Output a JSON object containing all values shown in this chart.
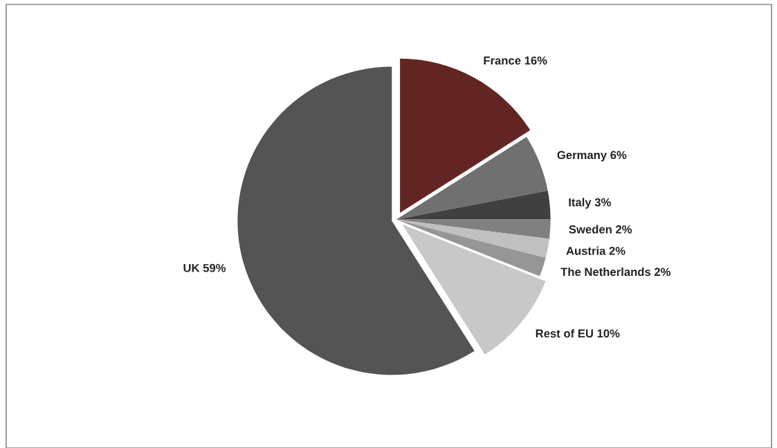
{
  "chart_data": {
    "type": "pie",
    "categories": [
      "France",
      "Germany",
      "Italy",
      "Sweden",
      "Austria",
      "The Netherlands",
      "Rest of EU",
      "UK"
    ],
    "values": [
      16,
      6,
      3,
      2,
      2,
      2,
      10,
      59
    ],
    "value_labels": [
      "16%",
      "6%",
      "3%",
      "2%",
      "2%",
      "2%",
      "10%",
      "59%"
    ],
    "colors": [
      "#632523",
      "#707070",
      "#404040",
      "#808080",
      "#c0c0c0",
      "#969696",
      "#c8c8c8",
      "#545454"
    ]
  }
}
